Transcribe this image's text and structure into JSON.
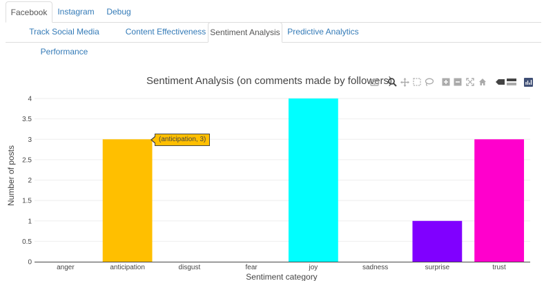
{
  "top_tabs": [
    {
      "label": "Facebook",
      "active": true
    },
    {
      "label": "Instagram",
      "active": false
    },
    {
      "label": "Debug",
      "active": false
    }
  ],
  "sub_tabs": [
    {
      "label": "Track Social Media Performance",
      "active": false
    },
    {
      "label": "Content Effectiveness",
      "active": false
    },
    {
      "label": "Sentiment Analysis",
      "active": true
    },
    {
      "label": "Predictive Analytics",
      "active": false
    }
  ],
  "modebar": [
    "camera-icon",
    "zoom-icon",
    "pan-icon",
    "box-select-icon",
    "lasso-icon",
    "zoom-in-icon",
    "zoom-out-icon",
    "autoscale-icon",
    "home-icon",
    "spike-lines-icon",
    "compare-hover-icon",
    "plotly-logo-icon"
  ],
  "tooltip": "(anticipation, 3)",
  "chart_data": {
    "type": "bar",
    "title": "Sentiment Analysis (on comments made by followers)",
    "xlabel": "Sentiment category",
    "ylabel": "Number of posts",
    "categories": [
      "anger",
      "anticipation",
      "disgust",
      "fear",
      "joy",
      "sadness",
      "surprise",
      "trust"
    ],
    "values": [
      0,
      3,
      0,
      0,
      4,
      0,
      1,
      3
    ],
    "colors": [
      "#FF0000",
      "#FFBF00",
      "#8B4513",
      "#2E8B57",
      "#00FFFF",
      "#1E90FF",
      "#8000FF",
      "#FF00CC"
    ],
    "ylim": [
      0,
      4
    ],
    "yticks": [
      "0",
      "0.5",
      "1",
      "1.5",
      "2",
      "2.5",
      "3",
      "3.5",
      "4"
    ],
    "grid": true
  }
}
